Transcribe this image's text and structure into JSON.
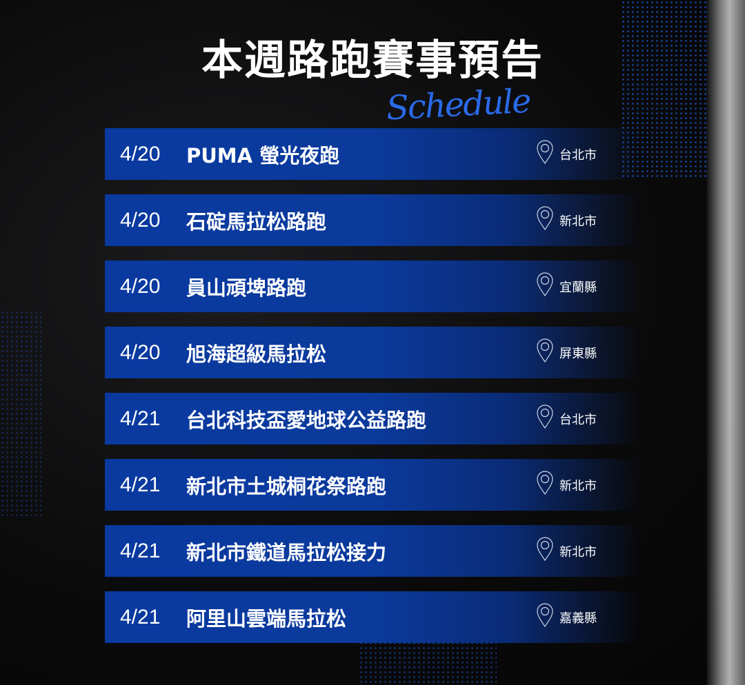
{
  "title": "本週路跑賽事預告",
  "subtitle_script": "Schedule",
  "events": [
    {
      "date": "4/20",
      "name": "PUMA 螢光夜跑",
      "location": "台北市"
    },
    {
      "date": "4/20",
      "name": "石碇馬拉松路跑",
      "location": "新北市"
    },
    {
      "date": "4/20",
      "name": "員山頑埤路跑",
      "location": "宜蘭縣"
    },
    {
      "date": "4/20",
      "name": "旭海超級馬拉松",
      "location": "屏東縣"
    },
    {
      "date": "4/21",
      "name": "台北科技盃愛地球公益路跑",
      "location": "台北市"
    },
    {
      "date": "4/21",
      "name": "新北市土城桐花祭路跑",
      "location": "新北市"
    },
    {
      "date": "4/21",
      "name": "新北市鐵道馬拉松接力",
      "location": "新北市"
    },
    {
      "date": "4/21",
      "name": "阿里山雲端馬拉松",
      "location": "嘉義縣"
    }
  ],
  "colors": {
    "accent": "#0a3aa0",
    "script": "#2a6ae8"
  },
  "icons": {
    "location": "map-pin-icon"
  }
}
